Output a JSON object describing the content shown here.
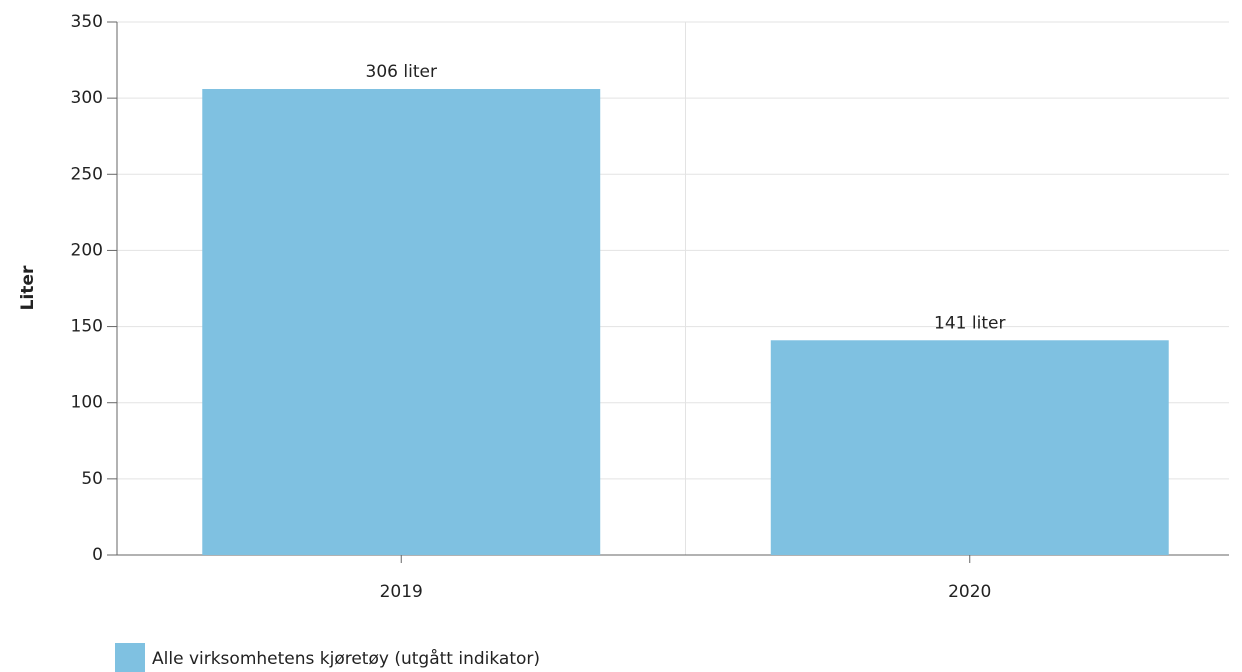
{
  "chart_data": {
    "type": "bar",
    "y_label": "Liter",
    "categories": [
      "2019",
      "2020"
    ],
    "series": [
      {
        "name": "Alle virksomhetens kjøretøy (utgått indikator)",
        "color": "#7fc1e1",
        "values": [
          306,
          141
        ],
        "value_labels": [
          "306 liter",
          "141 liter"
        ]
      }
    ],
    "ylim": [
      0,
      350
    ],
    "yticks": [
      0,
      50,
      100,
      150,
      200,
      250,
      300,
      350
    ],
    "grid": true
  }
}
